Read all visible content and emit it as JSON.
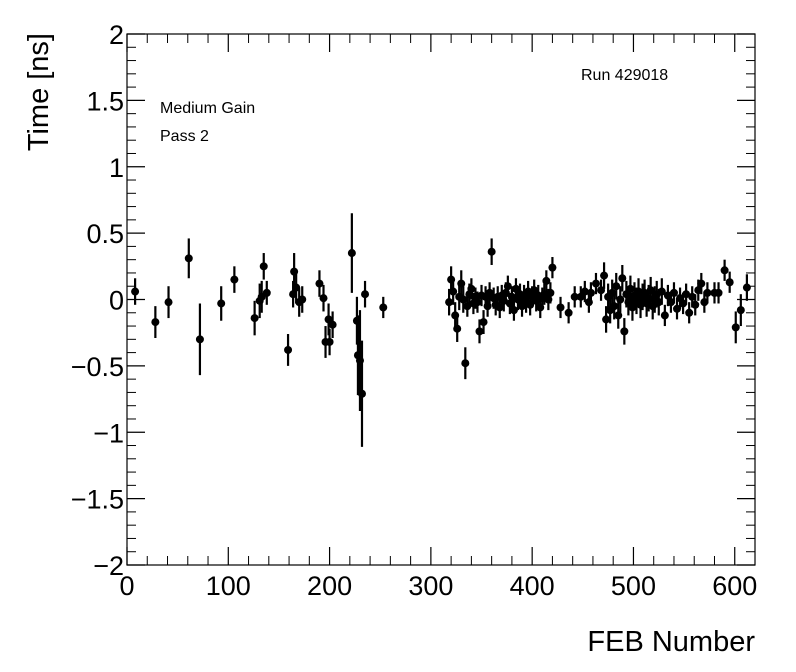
{
  "chart_data": {
    "type": "scatter",
    "xlabel": "FEB Number",
    "ylabel": "Time [ns]",
    "xlim": [
      0,
      620
    ],
    "ylim": [
      -2,
      2
    ],
    "x_ticks": [
      0,
      100,
      200,
      300,
      400,
      500,
      600
    ],
    "x_tick_labels": [
      "0",
      "100",
      "200",
      "300",
      "400",
      "500",
      "600"
    ],
    "y_ticks": [
      -2,
      -1.5,
      -1,
      -0.5,
      0,
      0.5,
      1,
      1.5,
      2
    ],
    "y_tick_labels": [
      "−2",
      "−1.5",
      "−1",
      "−0.5",
      "0",
      "0.5",
      "1",
      "1.5",
      "2"
    ],
    "annotations": {
      "run": "Run 429018",
      "gain": "Medium Gain",
      "pass": "Pass 2"
    },
    "grid": false,
    "marker_color": "#000000",
    "points": [
      {
        "x": 8,
        "y": 0.06,
        "err": 0.1
      },
      {
        "x": 28,
        "y": -0.17,
        "err": 0.12
      },
      {
        "x": 41,
        "y": -0.02,
        "err": 0.12
      },
      {
        "x": 61,
        "y": 0.31,
        "err": 0.15
      },
      {
        "x": 72,
        "y": -0.3,
        "err": 0.27
      },
      {
        "x": 93,
        "y": -0.03,
        "err": 0.13
      },
      {
        "x": 106,
        "y": 0.15,
        "err": 0.1
      },
      {
        "x": 126,
        "y": -0.14,
        "err": 0.13
      },
      {
        "x": 131,
        "y": -0.01,
        "err": 0.13
      },
      {
        "x": 133,
        "y": 0.02,
        "err": 0.12
      },
      {
        "x": 135,
        "y": 0.25,
        "err": 0.1
      },
      {
        "x": 138,
        "y": 0.05,
        "err": 0.09
      },
      {
        "x": 159,
        "y": -0.38,
        "err": 0.12
      },
      {
        "x": 164,
        "y": 0.04,
        "err": 0.1
      },
      {
        "x": 165,
        "y": 0.21,
        "err": 0.14
      },
      {
        "x": 167,
        "y": 0.09,
        "err": 0.12
      },
      {
        "x": 170,
        "y": -0.02,
        "err": 0.11
      },
      {
        "x": 173,
        "y": 0.0,
        "err": 0.1
      },
      {
        "x": 190,
        "y": 0.12,
        "err": 0.1
      },
      {
        "x": 194,
        "y": 0.01,
        "err": 0.1
      },
      {
        "x": 196,
        "y": -0.32,
        "err": 0.12
      },
      {
        "x": 199,
        "y": -0.15,
        "err": 0.12
      },
      {
        "x": 200,
        "y": -0.32,
        "err": 0.1
      },
      {
        "x": 203,
        "y": -0.19,
        "err": 0.1
      },
      {
        "x": 222,
        "y": 0.35,
        "err": 0.3
      },
      {
        "x": 227,
        "y": -0.16,
        "err": 0.18
      },
      {
        "x": 228,
        "y": -0.42,
        "err": 0.3
      },
      {
        "x": 230,
        "y": -0.46,
        "err": 0.38
      },
      {
        "x": 232,
        "y": -0.71,
        "err": 0.4
      },
      {
        "x": 235,
        "y": 0.04,
        "err": 0.1
      },
      {
        "x": 253,
        "y": -0.06,
        "err": 0.08
      },
      {
        "x": 318,
        "y": -0.02,
        "err": 0.1
      },
      {
        "x": 320,
        "y": 0.15,
        "err": 0.1
      },
      {
        "x": 322,
        "y": 0.06,
        "err": 0.1
      },
      {
        "x": 324,
        "y": -0.12,
        "err": 0.1
      },
      {
        "x": 326,
        "y": -0.22,
        "err": 0.1
      },
      {
        "x": 328,
        "y": 0.02,
        "err": 0.1
      },
      {
        "x": 330,
        "y": 0.12,
        "err": 0.1
      },
      {
        "x": 332,
        "y": 0.0,
        "err": 0.1
      },
      {
        "x": 334,
        "y": -0.48,
        "err": 0.12
      },
      {
        "x": 336,
        "y": -0.05,
        "err": 0.08
      },
      {
        "x": 338,
        "y": 0.04,
        "err": 0.08
      },
      {
        "x": 340,
        "y": 0.08,
        "err": 0.08
      },
      {
        "x": 342,
        "y": -0.03,
        "err": 0.08
      },
      {
        "x": 344,
        "y": 0.01,
        "err": 0.08
      },
      {
        "x": 346,
        "y": -0.02,
        "err": 0.08
      },
      {
        "x": 348,
        "y": -0.24,
        "err": 0.09
      },
      {
        "x": 350,
        "y": 0.03,
        "err": 0.08
      },
      {
        "x": 352,
        "y": -0.17,
        "err": 0.09
      },
      {
        "x": 354,
        "y": 0.02,
        "err": 0.08
      },
      {
        "x": 356,
        "y": -0.05,
        "err": 0.08
      },
      {
        "x": 358,
        "y": 0.05,
        "err": 0.08
      },
      {
        "x": 360,
        "y": 0.36,
        "err": 0.1
      },
      {
        "x": 362,
        "y": 0.01,
        "err": 0.08
      },
      {
        "x": 364,
        "y": -0.04,
        "err": 0.08
      },
      {
        "x": 366,
        "y": 0.02,
        "err": 0.08
      },
      {
        "x": 368,
        "y": -0.06,
        "err": 0.08
      },
      {
        "x": 370,
        "y": 0.03,
        "err": 0.08
      },
      {
        "x": 372,
        "y": -0.01,
        "err": 0.08
      },
      {
        "x": 374,
        "y": 0.05,
        "err": 0.08
      },
      {
        "x": 376,
        "y": 0.1,
        "err": 0.08
      },
      {
        "x": 378,
        "y": -0.03,
        "err": 0.08
      },
      {
        "x": 380,
        "y": 0.02,
        "err": 0.08
      },
      {
        "x": 382,
        "y": -0.08,
        "err": 0.08
      },
      {
        "x": 384,
        "y": 0.08,
        "err": 0.08
      },
      {
        "x": 386,
        "y": 0.0,
        "err": 0.08
      },
      {
        "x": 388,
        "y": 0.04,
        "err": 0.08
      },
      {
        "x": 390,
        "y": -0.05,
        "err": 0.08
      },
      {
        "x": 392,
        "y": 0.03,
        "err": 0.08
      },
      {
        "x": 394,
        "y": -0.02,
        "err": 0.08
      },
      {
        "x": 396,
        "y": 0.06,
        "err": 0.08
      },
      {
        "x": 398,
        "y": -0.04,
        "err": 0.08
      },
      {
        "x": 400,
        "y": 0.02,
        "err": 0.08
      },
      {
        "x": 402,
        "y": 0.07,
        "err": 0.08
      },
      {
        "x": 404,
        "y": -0.01,
        "err": 0.08
      },
      {
        "x": 406,
        "y": 0.03,
        "err": 0.08
      },
      {
        "x": 408,
        "y": -0.06,
        "err": 0.08
      },
      {
        "x": 410,
        "y": 0.01,
        "err": 0.08
      },
      {
        "x": 412,
        "y": 0.04,
        "err": 0.08
      },
      {
        "x": 414,
        "y": 0.14,
        "err": 0.08
      },
      {
        "x": 416,
        "y": 0.0,
        "err": 0.08
      },
      {
        "x": 418,
        "y": 0.05,
        "err": 0.08
      },
      {
        "x": 420,
        "y": 0.24,
        "err": 0.08
      },
      {
        "x": 428,
        "y": -0.06,
        "err": 0.08
      },
      {
        "x": 436,
        "y": -0.1,
        "err": 0.08
      },
      {
        "x": 442,
        "y": 0.02,
        "err": 0.08
      },
      {
        "x": 448,
        "y": 0.02,
        "err": 0.08
      },
      {
        "x": 452,
        "y": 0.06,
        "err": 0.08
      },
      {
        "x": 456,
        "y": -0.02,
        "err": 0.08
      },
      {
        "x": 458,
        "y": 0.05,
        "err": 0.08
      },
      {
        "x": 463,
        "y": 0.12,
        "err": 0.08
      },
      {
        "x": 468,
        "y": 0.07,
        "err": 0.08
      },
      {
        "x": 471,
        "y": 0.18,
        "err": 0.1
      },
      {
        "x": 473,
        "y": -0.15,
        "err": 0.1
      },
      {
        "x": 475,
        "y": 0.02,
        "err": 0.1
      },
      {
        "x": 477,
        "y": -0.08,
        "err": 0.1
      },
      {
        "x": 479,
        "y": 0.05,
        "err": 0.1
      },
      {
        "x": 481,
        "y": -0.05,
        "err": 0.1
      },
      {
        "x": 483,
        "y": 0.1,
        "err": 0.1
      },
      {
        "x": 485,
        "y": -0.12,
        "err": 0.1
      },
      {
        "x": 487,
        "y": 0.0,
        "err": 0.1
      },
      {
        "x": 489,
        "y": 0.16,
        "err": 0.1
      },
      {
        "x": 491,
        "y": -0.24,
        "err": 0.1
      },
      {
        "x": 493,
        "y": 0.04,
        "err": 0.1
      },
      {
        "x": 495,
        "y": -0.02,
        "err": 0.1
      },
      {
        "x": 497,
        "y": 0.08,
        "err": 0.1
      },
      {
        "x": 499,
        "y": -0.06,
        "err": 0.1
      },
      {
        "x": 501,
        "y": 0.03,
        "err": 0.1
      },
      {
        "x": 503,
        "y": -0.01,
        "err": 0.1
      },
      {
        "x": 505,
        "y": 0.06,
        "err": 0.1
      },
      {
        "x": 507,
        "y": -0.04,
        "err": 0.1
      },
      {
        "x": 509,
        "y": 0.02,
        "err": 0.1
      },
      {
        "x": 511,
        "y": 0.05,
        "err": 0.1
      },
      {
        "x": 513,
        "y": -0.03,
        "err": 0.1
      },
      {
        "x": 515,
        "y": 0.01,
        "err": 0.1
      },
      {
        "x": 517,
        "y": 0.07,
        "err": 0.1
      },
      {
        "x": 519,
        "y": -0.05,
        "err": 0.1
      },
      {
        "x": 521,
        "y": 0.0,
        "err": 0.1
      },
      {
        "x": 523,
        "y": 0.04,
        "err": 0.1
      },
      {
        "x": 525,
        "y": -0.02,
        "err": 0.1
      },
      {
        "x": 528,
        "y": 0.06,
        "err": 0.1
      },
      {
        "x": 531,
        "y": -0.12,
        "err": 0.08
      },
      {
        "x": 534,
        "y": 0.03,
        "err": 0.08
      },
      {
        "x": 537,
        "y": -0.02,
        "err": 0.08
      },
      {
        "x": 540,
        "y": 0.05,
        "err": 0.08
      },
      {
        "x": 543,
        "y": -0.07,
        "err": 0.08
      },
      {
        "x": 546,
        "y": 0.01,
        "err": 0.08
      },
      {
        "x": 549,
        "y": -0.03,
        "err": 0.08
      },
      {
        "x": 552,
        "y": 0.04,
        "err": 0.08
      },
      {
        "x": 555,
        "y": -0.1,
        "err": 0.08
      },
      {
        "x": 558,
        "y": 0.02,
        "err": 0.08
      },
      {
        "x": 561,
        "y": -0.04,
        "err": 0.08
      },
      {
        "x": 564,
        "y": 0.07,
        "err": 0.08
      },
      {
        "x": 567,
        "y": 0.12,
        "err": 0.08
      },
      {
        "x": 570,
        "y": -0.02,
        "err": 0.08
      },
      {
        "x": 573,
        "y": 0.05,
        "err": 0.08
      },
      {
        "x": 580,
        "y": 0.05,
        "err": 0.08
      },
      {
        "x": 584,
        "y": 0.05,
        "err": 0.08
      },
      {
        "x": 590,
        "y": 0.22,
        "err": 0.08
      },
      {
        "x": 595,
        "y": 0.13,
        "err": 0.08
      },
      {
        "x": 601,
        "y": -0.21,
        "err": 0.12
      },
      {
        "x": 606,
        "y": -0.08,
        "err": 0.12
      },
      {
        "x": 612,
        "y": 0.09,
        "err": 0.1
      }
    ]
  }
}
